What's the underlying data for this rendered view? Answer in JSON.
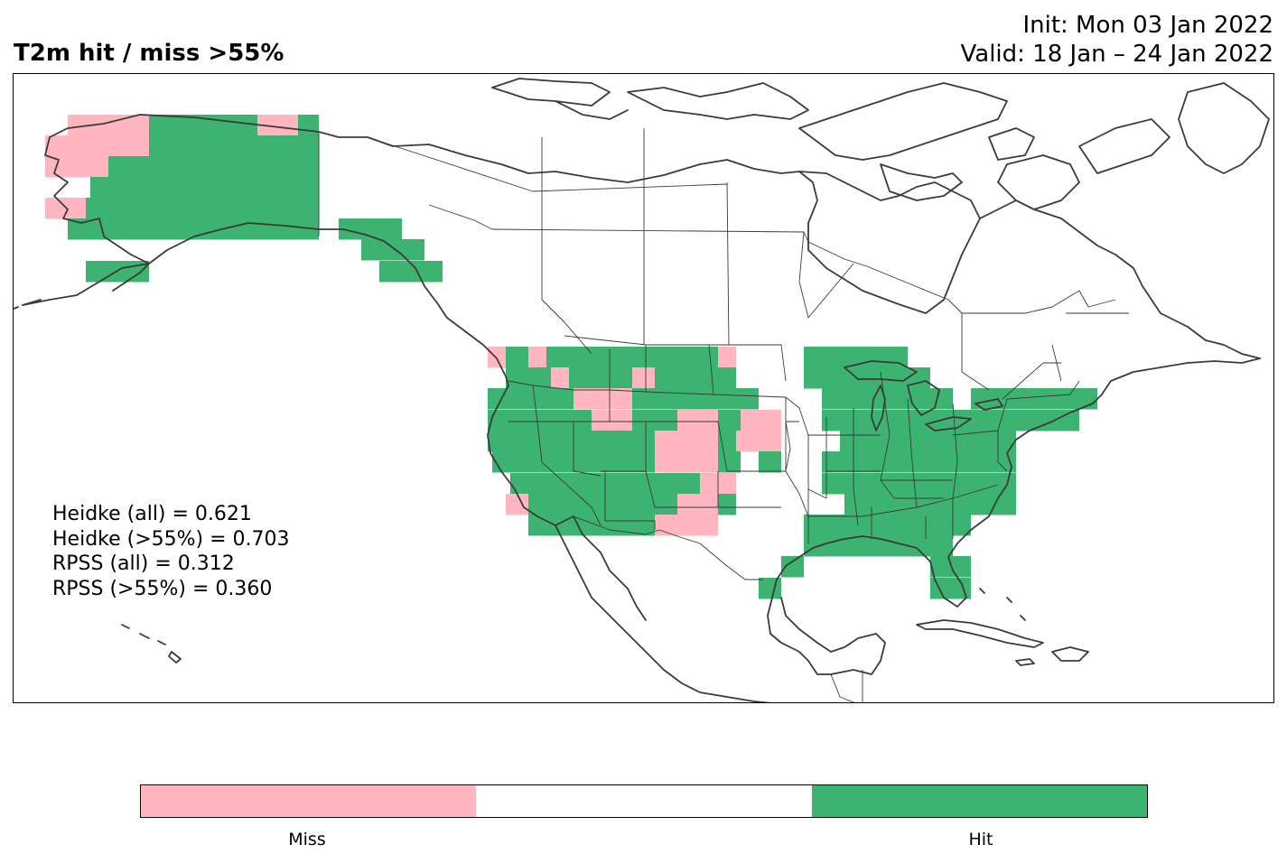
{
  "title": {
    "left": "T2m hit / miss  >55%",
    "init": "Init: Mon 03 Jan 2022",
    "valid": "Valid: 18 Jan – 24 Jan 2022"
  },
  "stats": [
    "Heidke (all) = 0.621",
    "Heidke (>55%) = 0.703",
    "RPSS (all) = 0.312",
    "RPSS (>55%) = 0.360"
  ],
  "colors": {
    "miss": "#ffb6c1",
    "neutral": "#ffffff",
    "hit": "#3cb371",
    "coast": "#3a3a3a"
  },
  "colorbar": {
    "labels": [
      "Miss",
      "Hit"
    ]
  },
  "map_legend": {
    "categories": [
      "miss",
      "neutral",
      "hit"
    ]
  }
}
